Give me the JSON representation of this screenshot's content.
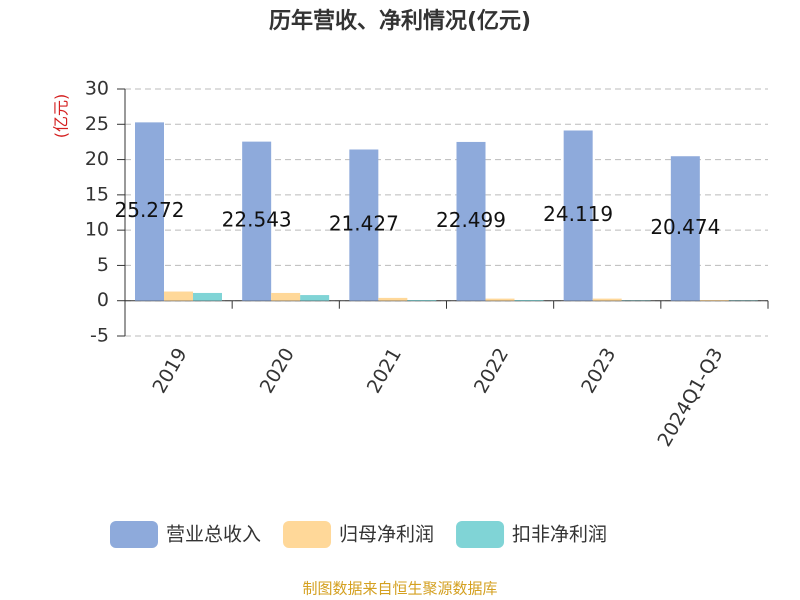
{
  "chart_data": {
    "type": "bar",
    "title": "历年营收、净利情况(亿元)",
    "y_label": "(亿元)",
    "categories": [
      "2019",
      "2020",
      "2021",
      "2022",
      "2023",
      "2024Q1-Q3"
    ],
    "series": [
      {
        "name": "营业总收入",
        "color": "#8eaadb",
        "values": [
          25.272,
          22.543,
          21.427,
          22.499,
          24.119,
          20.474
        ],
        "data_labels": true
      },
      {
        "name": "归母净利润",
        "color": "#ffd899",
        "values": [
          1.3,
          1.1,
          0.4,
          0.3,
          0.3,
          0.1
        ]
      },
      {
        "name": "扣非净利润",
        "color": "#80d4d6",
        "values": [
          1.1,
          0.8,
          0.1,
          0.1,
          0.05,
          0.05
        ]
      }
    ],
    "ylim": [
      -5,
      30
    ],
    "yticks": [
      -5,
      0,
      5,
      10,
      15,
      20,
      25,
      30
    ],
    "grid": true,
    "footer": "制图数据来自恒生聚源数据库"
  }
}
